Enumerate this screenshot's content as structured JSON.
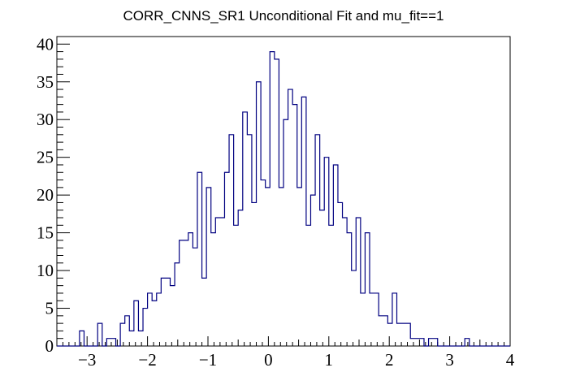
{
  "chart_data": {
    "type": "histogram",
    "title": "CORR_CNNS_SR1 Unconditional Fit and mu_fit==1",
    "xlabel": "",
    "ylabel": "",
    "xlim": [
      -3.5,
      4.0
    ],
    "ylim": [
      0,
      41
    ],
    "bin_width": 0.075,
    "line_color": "#000080",
    "x_ticks": [
      -3,
      -2,
      -1,
      0,
      1,
      2,
      3,
      4
    ],
    "y_ticks": [
      0,
      5,
      10,
      15,
      20,
      25,
      30,
      35,
      40
    ],
    "x_tick_labels": [
      "−3",
      "−2",
      "−1",
      "0",
      "1",
      "2",
      "3",
      "4"
    ],
    "y_tick_labels": [
      "0",
      "5",
      "10",
      "15",
      "20",
      "25",
      "30",
      "35",
      "40"
    ],
    "counts": [
      0,
      0,
      0,
      0,
      0,
      2,
      0,
      0,
      0,
      3,
      0,
      1,
      1,
      0,
      3,
      4,
      2,
      6,
      2,
      5,
      7,
      6,
      7,
      9,
      9,
      8,
      11,
      14,
      14,
      15,
      13,
      23,
      9,
      21,
      15,
      17,
      17,
      23,
      28,
      16,
      18,
      31,
      28,
      19,
      35,
      22,
      21,
      39,
      38,
      21,
      30,
      34,
      32,
      21,
      33,
      16,
      20,
      28,
      18,
      25,
      16,
      24,
      19,
      17,
      15,
      10,
      17,
      7,
      15,
      7,
      7,
      4,
      4,
      3,
      7,
      3,
      3,
      3,
      1,
      1,
      1,
      0,
      1,
      1,
      0,
      0,
      0,
      0,
      0,
      0,
      1,
      0,
      0,
      0,
      0,
      0,
      0,
      0,
      0,
      0
    ]
  }
}
